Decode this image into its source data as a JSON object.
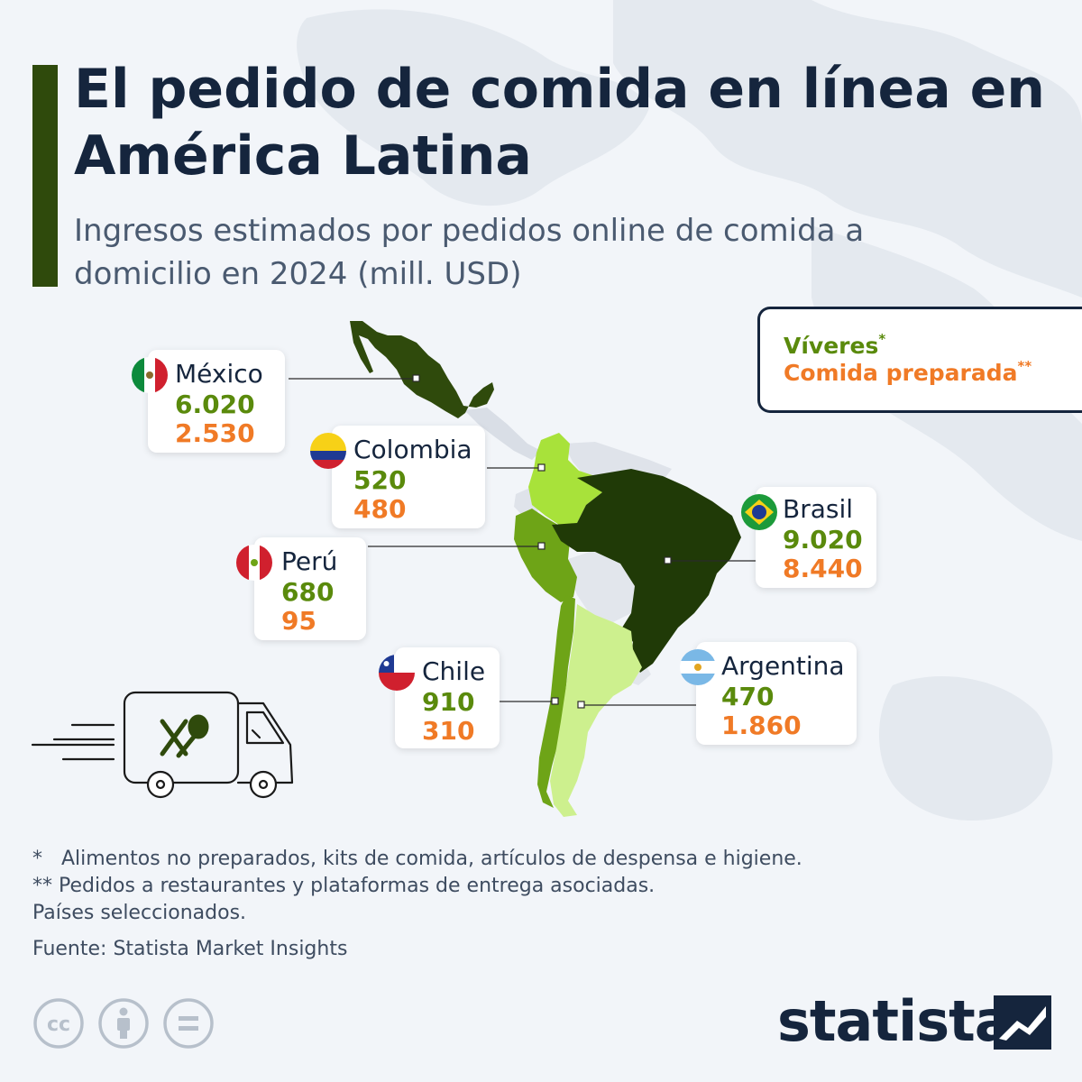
{
  "title": "El pedido de comida en línea en América Latina",
  "subtitle": "Ingresos estimados por pedidos online de comida a domicilio en 2024 (mill. USD)",
  "legend": {
    "groceries": "Víveres",
    "groceries_mark": "*",
    "prepared": "Comida preparada",
    "prepared_mark": "**"
  },
  "colors": {
    "groceries": "#5a8a0c",
    "prepared": "#f07a26",
    "title": "#15253d",
    "accent_bar": "#2f4a0c"
  },
  "countries": [
    {
      "name": "México",
      "groceries": "6.020",
      "prepared": "2.530",
      "flag": "mexico-flag-icon",
      "fill": "#2f4a0c"
    },
    {
      "name": "Colombia",
      "groceries": "520",
      "prepared": "480",
      "flag": "colombia-flag-icon",
      "fill": "#a8e23a"
    },
    {
      "name": "Perú",
      "groceries": "680",
      "prepared": "95",
      "flag": "peru-flag-icon",
      "fill": "#6ea417"
    },
    {
      "name": "Brasil",
      "groceries": "9.020",
      "prepared": "8.440",
      "flag": "brazil-flag-icon",
      "fill": "#203a07"
    },
    {
      "name": "Chile",
      "groceries": "910",
      "prepared": "310",
      "flag": "chile-flag-icon",
      "fill": "#6ea417"
    },
    {
      "name": "Argentina",
      "groceries": "470",
      "prepared": "1.860",
      "flag": "argentina-flag-icon",
      "fill": "#cdf08e"
    }
  ],
  "notes": [
    "*   Alimentos no preparados, kits de comida, artículos de despensa e higiene.",
    "** Pedidos a restaurantes y plataformas de entrega asociadas.",
    "Países seleccionados."
  ],
  "source": "Fuente: Statista Market Insights",
  "brand": "statista",
  "icons": [
    "cc-icon",
    "by-icon",
    "nd-icon",
    "delivery-truck-icon",
    "statista-logo-icon"
  ]
}
